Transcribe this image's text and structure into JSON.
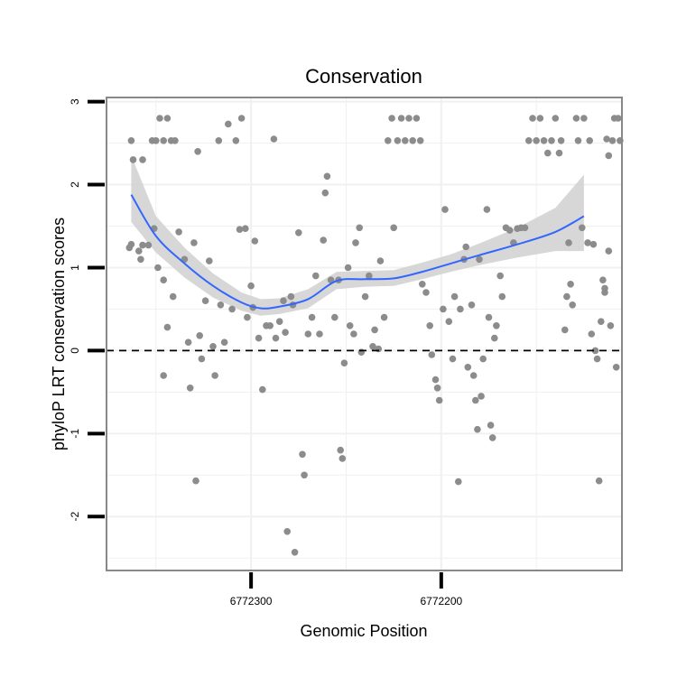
{
  "chart_data": {
    "type": "scatter",
    "title": "Conservation",
    "xlabel": "Genomic Position",
    "ylabel": "phyloP LRT conservation scores",
    "x_reversed": true,
    "xlim": [
      6772376,
      6772105
    ],
    "ylim": [
      -2.65,
      3.05
    ],
    "x_ticks": [
      6772300,
      6772200
    ],
    "x_tick_labels": [
      "6772300",
      "6772200"
    ],
    "y_ticks": [
      -2,
      -1,
      0,
      1,
      2,
      3
    ],
    "y_tick_labels": [
      "-2",
      "-1",
      "0",
      "1",
      "2",
      "3"
    ],
    "reference_line": {
      "y": 0,
      "style": "dashed"
    },
    "grid": true,
    "colors": {
      "points": "#8c8c8c",
      "smooth_line": "#3366ff",
      "confidence_band": "#d3d3d3",
      "reference_line": "#000000",
      "panel_border": "#888888",
      "grid": "#f0f0f0"
    },
    "smooth": {
      "method": "loess",
      "x": [
        6772363,
        6772350,
        6772335,
        6772320,
        6772305,
        6772295,
        6772285,
        6772270,
        6772255,
        6772240,
        6772225,
        6772210,
        6772195,
        6772180,
        6772160,
        6772140,
        6772125
      ],
      "y": [
        1.88,
        1.38,
        1.05,
        0.78,
        0.58,
        0.51,
        0.53,
        0.62,
        0.84,
        0.86,
        0.87,
        0.95,
        1.05,
        1.15,
        1.28,
        1.43,
        1.62
      ],
      "lower": [
        1.55,
        1.18,
        0.88,
        0.64,
        0.48,
        0.42,
        0.44,
        0.51,
        0.74,
        0.77,
        0.78,
        0.86,
        0.95,
        1.03,
        1.12,
        1.2,
        1.2
      ],
      "upper": [
        2.35,
        1.62,
        1.24,
        0.93,
        0.7,
        0.62,
        0.63,
        0.74,
        0.95,
        0.96,
        0.97,
        1.06,
        1.16,
        1.29,
        1.48,
        1.72,
        2.12
      ]
    },
    "points": [
      {
        "x": 6772363,
        "y": 2.53
      },
      {
        "x": 6772362,
        "y": 2.3
      },
      {
        "x": 6772357,
        "y": 2.3
      },
      {
        "x": 6772364,
        "y": 1.24
      },
      {
        "x": 6772363,
        "y": 1.28
      },
      {
        "x": 6772359,
        "y": 1.2
      },
      {
        "x": 6772358,
        "y": 1.1
      },
      {
        "x": 6772357,
        "y": 1.27
      },
      {
        "x": 6772354,
        "y": 1.27
      },
      {
        "x": 6772352,
        "y": 2.53
      },
      {
        "x": 6772350,
        "y": 2.53
      },
      {
        "x": 6772348,
        "y": 2.8
      },
      {
        "x": 6772346,
        "y": 2.53
      },
      {
        "x": 6772344,
        "y": 2.8
      },
      {
        "x": 6772342,
        "y": 2.53
      },
      {
        "x": 6772340,
        "y": 2.53
      },
      {
        "x": 6772351,
        "y": 1.47
      },
      {
        "x": 6772349,
        "y": 1.0
      },
      {
        "x": 6772346,
        "y": 0.85
      },
      {
        "x": 6772344,
        "y": 0.28
      },
      {
        "x": 6772346,
        "y": -0.3
      },
      {
        "x": 6772341,
        "y": 0.65
      },
      {
        "x": 6772338,
        "y": 1.43
      },
      {
        "x": 6772335,
        "y": 1.1
      },
      {
        "x": 6772333,
        "y": 0.1
      },
      {
        "x": 6772332,
        "y": -0.45
      },
      {
        "x": 6772330,
        "y": 1.3
      },
      {
        "x": 6772328,
        "y": 2.4
      },
      {
        "x": 6772327,
        "y": 0.18
      },
      {
        "x": 6772326,
        "y": -0.1
      },
      {
        "x": 6772324,
        "y": 0.6
      },
      {
        "x": 6772322,
        "y": 1.08
      },
      {
        "x": 6772320,
        "y": 0.05
      },
      {
        "x": 6772319,
        "y": -0.3
      },
      {
        "x": 6772317,
        "y": 2.53
      },
      {
        "x": 6772316,
        "y": 0.55
      },
      {
        "x": 6772314,
        "y": 0.1
      },
      {
        "x": 6772312,
        "y": 2.73
      },
      {
        "x": 6772310,
        "y": 0.5
      },
      {
        "x": 6772308,
        "y": 2.53
      },
      {
        "x": 6772306,
        "y": 1.46
      },
      {
        "x": 6772305,
        "y": 2.8
      },
      {
        "x": 6772303,
        "y": 1.47
      },
      {
        "x": 6772302,
        "y": 0.4
      },
      {
        "x": 6772300,
        "y": 0.78
      },
      {
        "x": 6772299,
        "y": 0.52
      },
      {
        "x": 6772298,
        "y": 1.32
      },
      {
        "x": 6772296,
        "y": 0.15
      },
      {
        "x": 6772294,
        "y": -0.47
      },
      {
        "x": 6772329,
        "y": -1.57
      },
      {
        "x": 6772292,
        "y": 0.3
      },
      {
        "x": 6772290,
        "y": 0.3
      },
      {
        "x": 6772288,
        "y": 2.55
      },
      {
        "x": 6772287,
        "y": 0.15
      },
      {
        "x": 6772285,
        "y": 0.35
      },
      {
        "x": 6772283,
        "y": 0.6
      },
      {
        "x": 6772282,
        "y": 0.22
      },
      {
        "x": 6772281,
        "y": -2.18
      },
      {
        "x": 6772279,
        "y": 0.65
      },
      {
        "x": 6772278,
        "y": 0.55
      },
      {
        "x": 6772277,
        "y": -2.43
      },
      {
        "x": 6772275,
        "y": 1.42
      },
      {
        "x": 6772273,
        "y": -1.25
      },
      {
        "x": 6772272,
        "y": -1.5
      },
      {
        "x": 6772270,
        "y": 0.2
      },
      {
        "x": 6772268,
        "y": 0.4
      },
      {
        "x": 6772266,
        "y": 0.9
      },
      {
        "x": 6772264,
        "y": 0.2
      },
      {
        "x": 6772262,
        "y": 1.33
      },
      {
        "x": 6772261,
        "y": 1.9
      },
      {
        "x": 6772260,
        "y": 2.1
      },
      {
        "x": 6772258,
        "y": 0.85
      },
      {
        "x": 6772256,
        "y": 0.4
      },
      {
        "x": 6772254,
        "y": 0.85
      },
      {
        "x": 6772253,
        "y": -1.2
      },
      {
        "x": 6772252,
        "y": -1.3
      },
      {
        "x": 6772251,
        "y": -0.15
      },
      {
        "x": 6772249,
        "y": 1.0
      },
      {
        "x": 6772248,
        "y": 0.3
      },
      {
        "x": 6772246,
        "y": 0.2
      },
      {
        "x": 6772245,
        "y": 1.3
      },
      {
        "x": 6772243,
        "y": 1.48
      },
      {
        "x": 6772242,
        "y": -0.02
      },
      {
        "x": 6772240,
        "y": 0.65
      },
      {
        "x": 6772238,
        "y": 0.9
      },
      {
        "x": 6772236,
        "y": 0.05
      },
      {
        "x": 6772235,
        "y": 0.25
      },
      {
        "x": 6772233,
        "y": 0.02
      },
      {
        "x": 6772232,
        "y": 1.08
      },
      {
        "x": 6772230,
        "y": 0.4
      },
      {
        "x": 6772228,
        "y": 2.53
      },
      {
        "x": 6772226,
        "y": 2.8
      },
      {
        "x": 6772225,
        "y": 1.48
      },
      {
        "x": 6772223,
        "y": 2.53
      },
      {
        "x": 6772221,
        "y": 2.8
      },
      {
        "x": 6772219,
        "y": 2.53
      },
      {
        "x": 6772217,
        "y": 2.8
      },
      {
        "x": 6772215,
        "y": 2.53
      },
      {
        "x": 6772213,
        "y": 2.8
      },
      {
        "x": 6772211,
        "y": 2.53
      },
      {
        "x": 6772210,
        "y": 0.8
      },
      {
        "x": 6772208,
        "y": 0.7
      },
      {
        "x": 6772206,
        "y": 0.3
      },
      {
        "x": 6772205,
        "y": -0.05
      },
      {
        "x": 6772203,
        "y": -0.35
      },
      {
        "x": 6772202,
        "y": -0.45
      },
      {
        "x": 6772201,
        "y": -0.6
      },
      {
        "x": 6772199,
        "y": 0.5
      },
      {
        "x": 6772198,
        "y": 1.7
      },
      {
        "x": 6772196,
        "y": 0.35
      },
      {
        "x": 6772194,
        "y": -0.1
      },
      {
        "x": 6772193,
        "y": 0.65
      },
      {
        "x": 6772191,
        "y": -1.58
      },
      {
        "x": 6772190,
        "y": 0.5
      },
      {
        "x": 6772188,
        "y": 1.1
      },
      {
        "x": 6772187,
        "y": 1.25
      },
      {
        "x": 6772186,
        "y": -0.2
      },
      {
        "x": 6772184,
        "y": 0.55
      },
      {
        "x": 6772183,
        "y": -0.3
      },
      {
        "x": 6772182,
        "y": -0.6
      },
      {
        "x": 6772181,
        "y": -0.95
      },
      {
        "x": 6772180,
        "y": 1.1
      },
      {
        "x": 6772179,
        "y": -0.55
      },
      {
        "x": 6772178,
        "y": -0.1
      },
      {
        "x": 6772176,
        "y": 1.7
      },
      {
        "x": 6772175,
        "y": 0.4
      },
      {
        "x": 6772174,
        "y": -0.9
      },
      {
        "x": 6772173,
        "y": -1.05
      },
      {
        "x": 6772172,
        "y": 0.15
      },
      {
        "x": 6772171,
        "y": 0.3
      },
      {
        "x": 6772169,
        "y": 0.9
      },
      {
        "x": 6772168,
        "y": 0.65
      },
      {
        "x": 6772166,
        "y": 1.48
      },
      {
        "x": 6772164,
        "y": 1.45
      },
      {
        "x": 6772162,
        "y": 1.3
      },
      {
        "x": 6772160,
        "y": 1.47
      },
      {
        "x": 6772158,
        "y": 1.48
      },
      {
        "x": 6772156,
        "y": 1.48
      },
      {
        "x": 6772154,
        "y": 2.53
      },
      {
        "x": 6772152,
        "y": 2.8
      },
      {
        "x": 6772150,
        "y": 2.53
      },
      {
        "x": 6772148,
        "y": 2.8
      },
      {
        "x": 6772146,
        "y": 2.53
      },
      {
        "x": 6772144,
        "y": 2.38
      },
      {
        "x": 6772142,
        "y": 2.53
      },
      {
        "x": 6772140,
        "y": 2.8
      },
      {
        "x": 6772138,
        "y": 2.38
      },
      {
        "x": 6772137,
        "y": 2.53
      },
      {
        "x": 6772135,
        "y": 0.25
      },
      {
        "x": 6772134,
        "y": 0.65
      },
      {
        "x": 6772133,
        "y": 1.3
      },
      {
        "x": 6772132,
        "y": 0.8
      },
      {
        "x": 6772131,
        "y": 0.55
      },
      {
        "x": 6772129,
        "y": 2.8
      },
      {
        "x": 6772128,
        "y": 2.53
      },
      {
        "x": 6772126,
        "y": 1.48
      },
      {
        "x": 6772125,
        "y": 2.8
      },
      {
        "x": 6772123,
        "y": 1.3
      },
      {
        "x": 6772122,
        "y": 2.53
      },
      {
        "x": 6772121,
        "y": 0.2
      },
      {
        "x": 6772120,
        "y": 1.28
      },
      {
        "x": 6772119,
        "y": 0.0
      },
      {
        "x": 6772118,
        "y": -0.1
      },
      {
        "x": 6772117,
        "y": -1.57
      },
      {
        "x": 6772116,
        "y": 0.35
      },
      {
        "x": 6772115,
        "y": 0.85
      },
      {
        "x": 6772114,
        "y": 0.7
      },
      {
        "x": 6772113,
        "y": 2.55
      },
      {
        "x": 6772112,
        "y": 2.35
      },
      {
        "x": 6772111,
        "y": 0.3
      },
      {
        "x": 6772110,
        "y": 2.53
      },
      {
        "x": 6772109,
        "y": 2.8
      },
      {
        "x": 6772107,
        "y": 2.8
      },
      {
        "x": 6772106,
        "y": 2.53
      },
      {
        "x": 6772108,
        "y": -0.2
      },
      {
        "x": 6772114,
        "y": 0.75
      },
      {
        "x": 6772112,
        "y": 1.2
      }
    ]
  }
}
